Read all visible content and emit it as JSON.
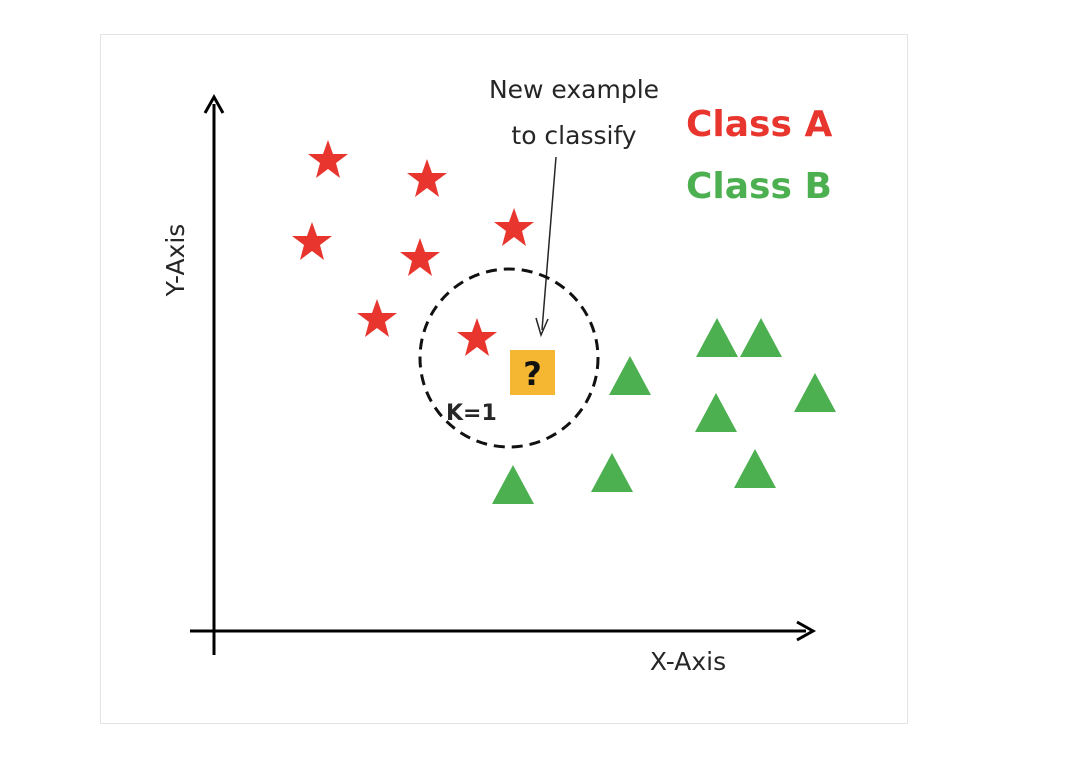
{
  "axes": {
    "x_label": "X-Axis",
    "y_label": "Y-Axis"
  },
  "annotation": {
    "line1": "New example",
    "line2": "to classify"
  },
  "legend": {
    "class_a": "Class A",
    "class_b": "Class B"
  },
  "query": {
    "symbol": "?"
  },
  "k_label": "K=1",
  "colors": {
    "class_a": "#e8352e",
    "class_b": "#4caf50",
    "query_box": "#f5b731",
    "axis": "#000000"
  },
  "icons": {
    "class_a_marker": "star-icon",
    "class_b_marker": "triangle-icon"
  }
}
